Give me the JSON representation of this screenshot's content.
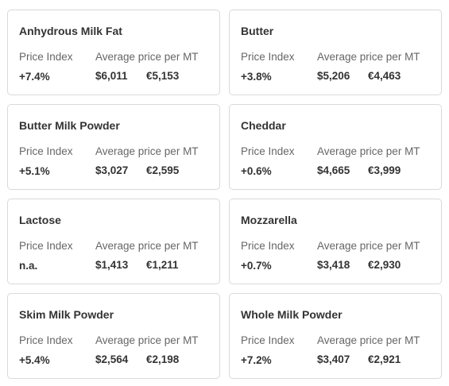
{
  "labels": {
    "price_index": "Price Index",
    "average_price": "Average price per MT"
  },
  "products": [
    {
      "name": "Anhydrous Milk Fat",
      "price_index": "+7.4%",
      "usd": "$6,011",
      "eur": "€5,153"
    },
    {
      "name": "Butter",
      "price_index": "+3.8%",
      "usd": "$5,206",
      "eur": "€4,463"
    },
    {
      "name": "Butter Milk Powder",
      "price_index": "+5.1%",
      "usd": "$3,027",
      "eur": "€2,595"
    },
    {
      "name": "Cheddar",
      "price_index": "+0.6%",
      "usd": "$4,665",
      "eur": "€3,999"
    },
    {
      "name": "Lactose",
      "price_index": "n.a.",
      "usd": "$1,413",
      "eur": "€1,211"
    },
    {
      "name": "Mozzarella",
      "price_index": "+0.7%",
      "usd": "$3,418",
      "eur": "€2,930"
    },
    {
      "name": "Skim Milk Powder",
      "price_index": "+5.4%",
      "usd": "$2,564",
      "eur": "€2,198"
    },
    {
      "name": "Whole Milk Powder",
      "price_index": "+7.2%",
      "usd": "$3,407",
      "eur": "€2,921"
    }
  ]
}
